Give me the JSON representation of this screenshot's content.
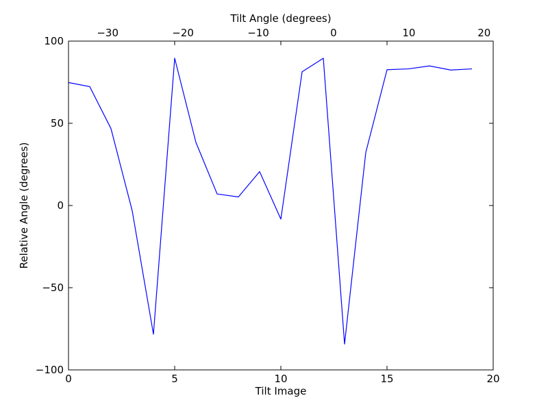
{
  "chart_data": {
    "type": "line",
    "xlabel": "Tilt Image",
    "ylabel": "Relative Angle (degrees)",
    "top_xlabel": "Tilt Angle (degrees)",
    "xlim": [
      0,
      20
    ],
    "ylim": [
      -100,
      100
    ],
    "top_xlim": [
      -35.2,
      21.2
    ],
    "xticks": [
      0,
      5,
      10,
      15,
      20
    ],
    "yticks": [
      -100,
      -50,
      0,
      50,
      100
    ],
    "top_xticks": [
      -30,
      -20,
      -10,
      0,
      10,
      20
    ],
    "xtick_labels": [
      "0",
      "5",
      "10",
      "15",
      "20"
    ],
    "ytick_labels": [
      "−100",
      "−50",
      "0",
      "50",
      "100"
    ],
    "top_xtick_labels": [
      "−30",
      "−20",
      "−10",
      "0",
      "10",
      "20"
    ],
    "grid": false,
    "series": [
      {
        "color": "#0000ff",
        "x": [
          0,
          1,
          2,
          3,
          4,
          5,
          6,
          7,
          8,
          9,
          10,
          11,
          12,
          13,
          14,
          15,
          16,
          17,
          18,
          19
        ],
        "y": [
          74.8,
          72.3,
          46.8,
          -3.2,
          -78.3,
          89.6,
          38.4,
          7.0,
          5.2,
          20.6,
          -8.3,
          81.3,
          89.6,
          -84.3,
          32.3,
          82.6,
          83.1,
          84.9,
          82.4,
          83.1
        ]
      }
    ]
  }
}
